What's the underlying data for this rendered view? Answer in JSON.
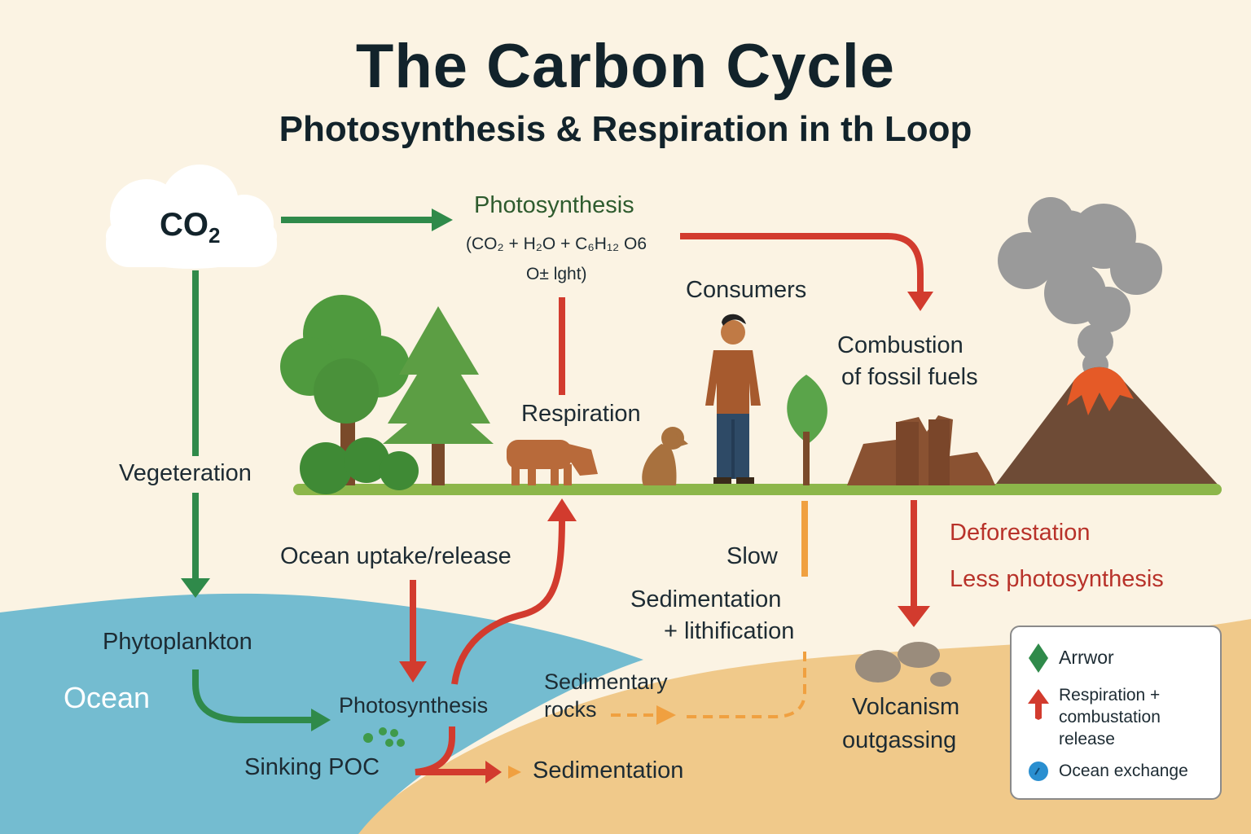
{
  "title": "The Carbon Cycle",
  "subtitle": "Photosynthesis & Respiration in th Loop",
  "atmosphere": {
    "co2_label": "CO",
    "co2_sub": "2"
  },
  "photosynthesis": {
    "label": "Photosynthesis",
    "formula_line1": "(CO₂ + H₂O  + C₆H₁₂ O6",
    "formula_line2": "O± lght)"
  },
  "respiration_label": "Respiration",
  "consumers_label": "Consumers",
  "combustion_label_1": "Combustion",
  "combustion_label_2": "of fossil fuels",
  "vegetation_label": "Vegeteration",
  "ocean_uptake_label": "Ocean uptake/release",
  "slow_label": "Slow",
  "sedimentation_lith_1": "Sedimentation",
  "sedimentation_lith_2": "+ lithification",
  "deforestation_label": "Deforestation",
  "less_photosynthesis_label": "Less photosynthesis",
  "phytoplankton_label": "Phytoplankton",
  "ocean_label": "Ocean",
  "ocean_photosynthesis_label": "Photosynthesis",
  "sedimentary_rocks_1": "Sedimentary",
  "sedimentary_rocks_2": "rocks",
  "sinking_poc_label": "Sinking POC",
  "sedimentation_label": "Sedimentation",
  "volcanism_1": "Volcanism",
  "volcanism_2": "outgassing",
  "legend": {
    "items": [
      {
        "icon": "green-diamond-icon",
        "label": "Arrwor"
      },
      {
        "icon": "red-arrow-icon",
        "label": "Respiration + combustation release"
      },
      {
        "icon": "blue-dot-icon",
        "label": "Ocean exchange"
      }
    ]
  },
  "colors": {
    "background": "#fbf3e3",
    "ocean": "#74bcd0",
    "sand": "#f0c98a",
    "green_arrow": "#2f8a4a",
    "red_arrow": "#d23b2e",
    "orange_arrow": "#f0a040",
    "title": "#12232b"
  }
}
